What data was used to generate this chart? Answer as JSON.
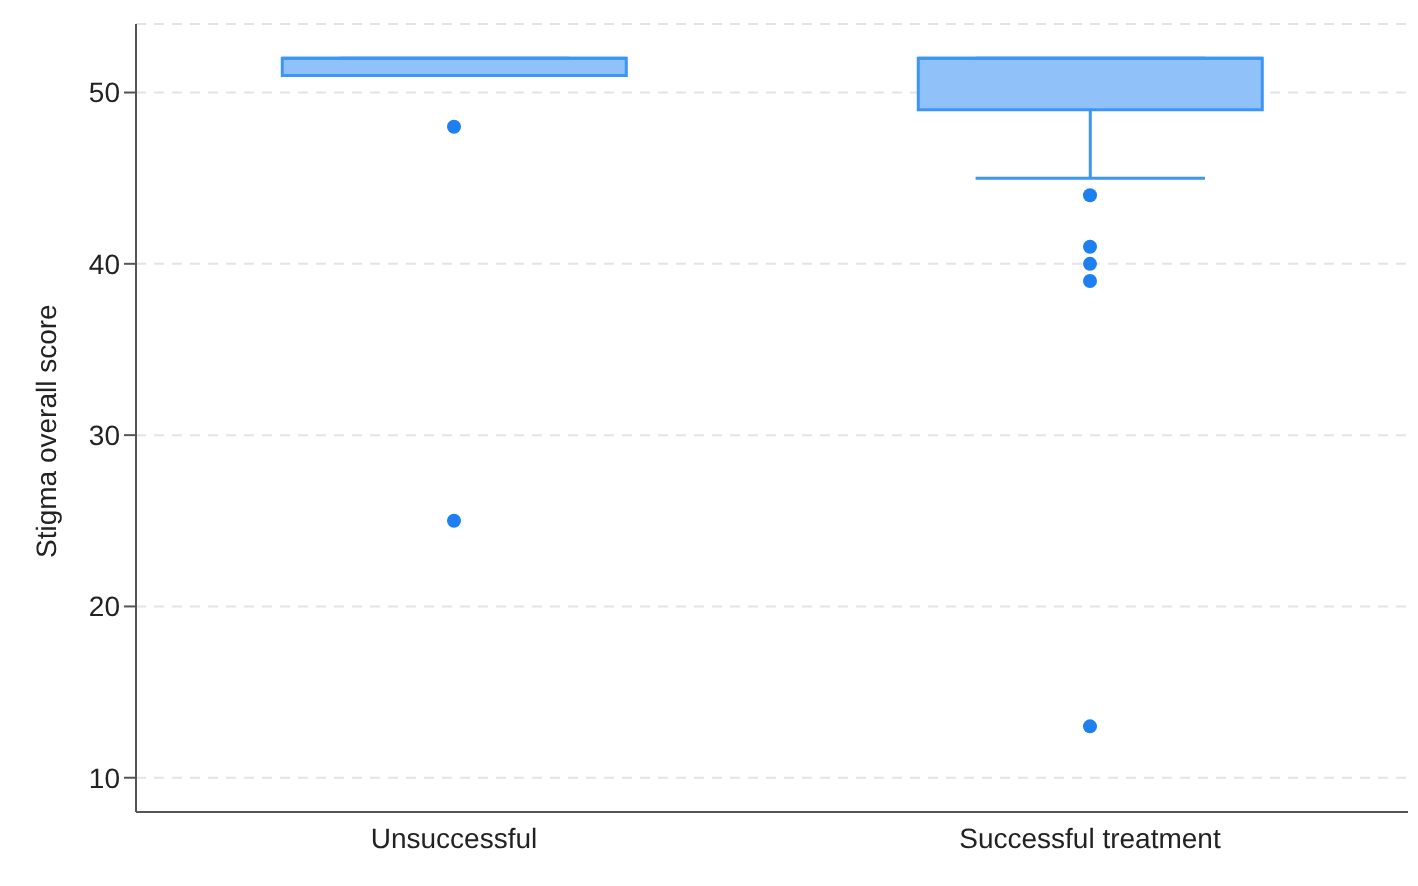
{
  "chart_data": {
    "type": "box",
    "ylabel": "Stigma overall score",
    "categories": [
      "Unsuccessful",
      "Successful treatment"
    ],
    "boxes": [
      {
        "low": 51,
        "q1": 51,
        "median": 52,
        "q3": 52,
        "high": 52,
        "outliers": [
          48,
          25
        ]
      },
      {
        "low": 45,
        "q1": 49,
        "median": 52,
        "q3": 52,
        "high": 52,
        "outliers": [
          44,
          41,
          40,
          39,
          13
        ]
      }
    ],
    "color": "#90c2f9",
    "ylim": [
      8,
      54
    ],
    "yticks": [
      10,
      20,
      30,
      40,
      50
    ],
    "grid": "y"
  }
}
